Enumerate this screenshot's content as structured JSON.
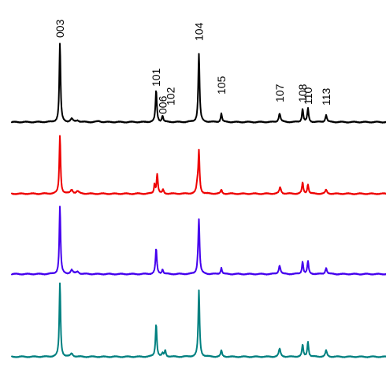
{
  "chart_data": {
    "type": "line",
    "title": "",
    "xlabel": "",
    "ylabel": "",
    "xlim": [
      10,
      80
    ],
    "peak_labels": [
      {
        "text": "003",
        "x": 19.0
      },
      {
        "text": "101",
        "x": 37.0
      },
      {
        "text": "006",
        "x": 38.2
      },
      {
        "text": "102",
        "x": 39.7
      },
      {
        "text": "104",
        "x": 45.0
      },
      {
        "text": "105",
        "x": 49.2
      },
      {
        "text": "107",
        "x": 60.1
      },
      {
        "text": "108",
        "x": 64.4
      },
      {
        "text": "110",
        "x": 65.4
      },
      {
        "text": "113",
        "x": 68.8
      }
    ],
    "series": [
      {
        "color": "#000000",
        "baseline": 155,
        "peaks": [
          {
            "x": 19.0,
            "h": 100,
            "w": 0.14
          },
          {
            "x": 21.2,
            "h": 4,
            "w": 0.25
          },
          {
            "x": 22.3,
            "h": 2,
            "w": 0.3
          },
          {
            "x": 26.3,
            "h": 1,
            "w": 0.4
          },
          {
            "x": 37.0,
            "h": 40,
            "w": 0.15
          },
          {
            "x": 38.2,
            "h": 8,
            "w": 0.15
          },
          {
            "x": 45.0,
            "h": 87,
            "w": 0.15
          },
          {
            "x": 49.2,
            "h": 11,
            "w": 0.15
          },
          {
            "x": 60.1,
            "h": 11,
            "w": 0.2
          },
          {
            "x": 64.4,
            "h": 17,
            "w": 0.15
          },
          {
            "x": 65.4,
            "h": 17,
            "w": 0.15
          },
          {
            "x": 68.8,
            "h": 9,
            "w": 0.18
          }
        ]
      },
      {
        "color": "#ee0000",
        "baseline": 246,
        "peaks": [
          {
            "x": 19.0,
            "h": 74,
            "w": 0.14
          },
          {
            "x": 21.2,
            "h": 5,
            "w": 0.25
          },
          {
            "x": 22.3,
            "h": 3,
            "w": 0.3
          },
          {
            "x": 36.7,
            "h": 12,
            "w": 0.12
          },
          {
            "x": 37.2,
            "h": 25,
            "w": 0.15
          },
          {
            "x": 38.3,
            "h": 5,
            "w": 0.15
          },
          {
            "x": 44.7,
            "h": 10,
            "w": 0.18
          },
          {
            "x": 45.0,
            "h": 53,
            "w": 0.15
          },
          {
            "x": 49.2,
            "h": 5,
            "w": 0.15
          },
          {
            "x": 60.2,
            "h": 8,
            "w": 0.2
          },
          {
            "x": 64.4,
            "h": 14,
            "w": 0.15
          },
          {
            "x": 65.4,
            "h": 12,
            "w": 0.15
          },
          {
            "x": 68.8,
            "h": 5,
            "w": 0.18
          }
        ]
      },
      {
        "color": "#4400ee",
        "baseline": 348,
        "peaks": [
          {
            "x": 19.0,
            "h": 86,
            "w": 0.14
          },
          {
            "x": 21.2,
            "h": 5,
            "w": 0.25
          },
          {
            "x": 22.3,
            "h": 3,
            "w": 0.3
          },
          {
            "x": 37.0,
            "h": 32,
            "w": 0.15
          },
          {
            "x": 38.2,
            "h": 6,
            "w": 0.15
          },
          {
            "x": 44.8,
            "h": 6,
            "w": 0.15
          },
          {
            "x": 45.0,
            "h": 68,
            "w": 0.15
          },
          {
            "x": 49.2,
            "h": 8,
            "w": 0.15
          },
          {
            "x": 60.1,
            "h": 11,
            "w": 0.2
          },
          {
            "x": 64.4,
            "h": 16,
            "w": 0.15
          },
          {
            "x": 65.4,
            "h": 16,
            "w": 0.15
          },
          {
            "x": 68.8,
            "h": 8,
            "w": 0.18
          }
        ]
      },
      {
        "color": "#008080",
        "baseline": 453,
        "peaks": [
          {
            "x": 19.0,
            "h": 94,
            "w": 0.14
          },
          {
            "x": 21.2,
            "h": 4,
            "w": 0.25
          },
          {
            "x": 37.0,
            "h": 42,
            "w": 0.15
          },
          {
            "x": 38.2,
            "h": 4,
            "w": 0.15
          },
          {
            "x": 38.7,
            "h": 8,
            "w": 0.15
          },
          {
            "x": 45.0,
            "h": 84,
            "w": 0.15
          },
          {
            "x": 49.2,
            "h": 8,
            "w": 0.15
          },
          {
            "x": 60.1,
            "h": 10,
            "w": 0.2
          },
          {
            "x": 64.4,
            "h": 15,
            "w": 0.15
          },
          {
            "x": 65.4,
            "h": 19,
            "w": 0.15
          },
          {
            "x": 68.8,
            "h": 8,
            "w": 0.18
          }
        ]
      }
    ]
  }
}
